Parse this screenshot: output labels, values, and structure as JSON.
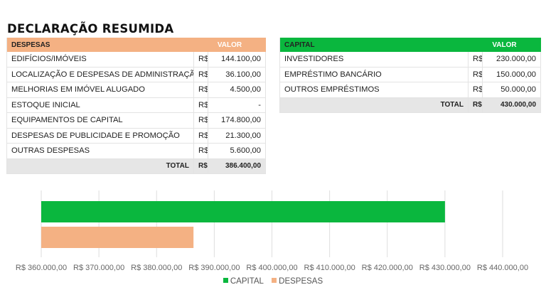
{
  "title": "DECLARAÇÃO RESUMIDA",
  "expenses_table": {
    "header_label": "DESPESAS",
    "header_value": "VALOR",
    "rows": [
      {
        "label": "EDIFÍCIOS/IMÓVEIS",
        "currency": "R$",
        "value": "144.100,00"
      },
      {
        "label": "LOCALIZAÇÃO E DESPESAS DE ADMINISTRAÇÃO",
        "currency": "R$",
        "value": "36.100,00"
      },
      {
        "label": "MELHORIAS EM IMÓVEL ALUGADO",
        "currency": "R$",
        "value": "4.500,00"
      },
      {
        "label": "ESTOQUE INICIAL",
        "currency": "R$",
        "value": "-"
      },
      {
        "label": "EQUIPAMENTOS DE CAPITAL",
        "currency": "R$",
        "value": "174.800,00"
      },
      {
        "label": "DESPESAS DE PUBLICIDADE E PROMOÇÃO",
        "currency": "R$",
        "value": "21.300,00"
      },
      {
        "label": "OUTRAS DESPESAS",
        "currency": "R$",
        "value": "5.600,00"
      }
    ],
    "total_label": "TOTAL",
    "total_currency": "R$",
    "total_value": "386.400,00"
  },
  "capital_table": {
    "header_label": "CAPITAL",
    "header_value": "VALOR",
    "rows": [
      {
        "label": "INVESTIDORES",
        "currency": "R$",
        "value": "230.000,00"
      },
      {
        "label": "EMPRÉSTIMO BANCÁRIO",
        "currency": "R$",
        "value": "150.000,00"
      },
      {
        "label": "OUTROS EMPRÉSTIMOS",
        "currency": "R$",
        "value": "50.000,00"
      }
    ],
    "total_label": "TOTAL",
    "total_currency": "R$",
    "total_value": "430.000,00"
  },
  "chart_data": {
    "type": "bar",
    "orientation": "horizontal",
    "categories": [
      "CAPITAL",
      "DESPESAS"
    ],
    "values": [
      430000,
      386400
    ],
    "colors": [
      "#0ab73e",
      "#f4b183"
    ],
    "xlim": [
      360000,
      440000
    ],
    "xticks": [
      360000,
      370000,
      380000,
      390000,
      400000,
      410000,
      420000,
      430000,
      440000
    ],
    "xtick_labels": [
      "R$ 360.000,00",
      "R$ 370.000,00",
      "R$ 380.000,00",
      "R$ 390.000,00",
      "R$ 400.000,00",
      "R$ 410.000,00",
      "R$ 420.000,00",
      "R$ 430.000,00",
      "R$ 440.000,00"
    ],
    "grid": true,
    "legend": {
      "position": "bottom",
      "entries": [
        "CAPITAL",
        "DESPESAS"
      ]
    }
  }
}
